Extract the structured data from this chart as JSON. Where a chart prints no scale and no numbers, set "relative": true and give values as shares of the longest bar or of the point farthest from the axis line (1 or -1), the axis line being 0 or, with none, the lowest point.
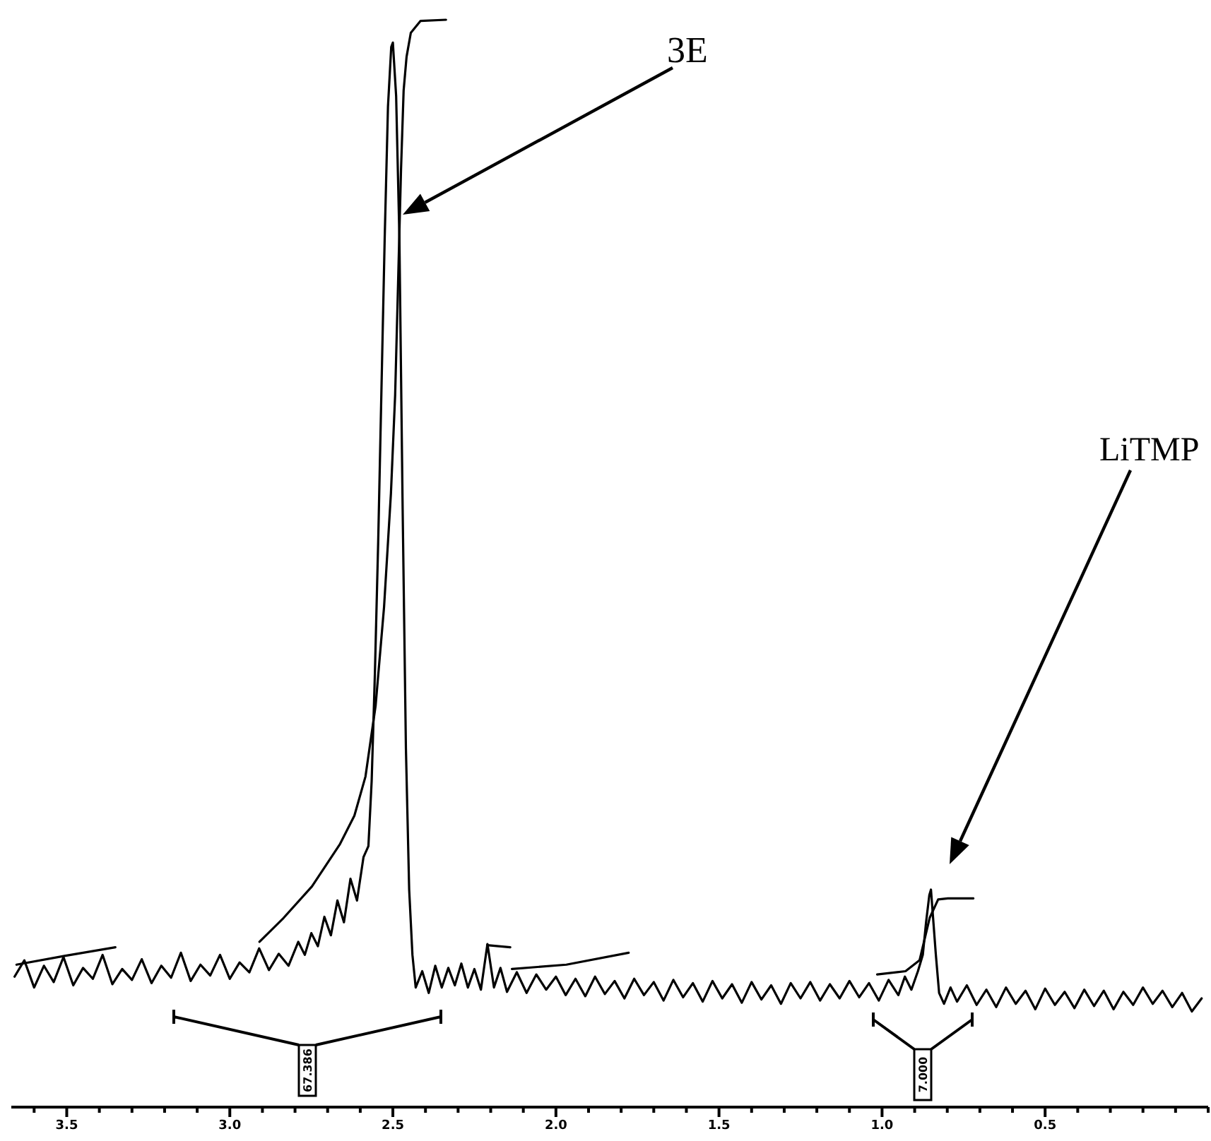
{
  "chart_data": {
    "type": "line",
    "relative": true,
    "xlim": [
      3.67,
      0.0
    ],
    "xticks": [
      {
        "value": 3.6,
        "label": null
      },
      3.5,
      {
        "value": 3.4,
        "label": null
      },
      {
        "value": 3.3,
        "label": null
      },
      {
        "value": 3.2,
        "label": null
      },
      {
        "value": 3.1,
        "label": null
      },
      {
        "value": 3.0,
        "label": "3.0"
      },
      {
        "value": 2.9,
        "label": null
      },
      {
        "value": 2.8,
        "label": null
      },
      {
        "value": 2.7,
        "label": null
      },
      {
        "value": 2.6,
        "label": null
      },
      2.5,
      {
        "value": 2.4,
        "label": null
      },
      {
        "value": 2.3,
        "label": null
      },
      {
        "value": 2.2,
        "label": null
      },
      {
        "value": 2.1,
        "label": null
      },
      {
        "value": 2.0,
        "label": "2.0"
      },
      {
        "value": 1.9,
        "label": null
      },
      {
        "value": 1.8,
        "label": null
      },
      {
        "value": 1.7,
        "label": null
      },
      {
        "value": 1.6,
        "label": null
      },
      1.5,
      {
        "value": 1.4,
        "label": null
      },
      {
        "value": 1.3,
        "label": null
      },
      {
        "value": 1.2,
        "label": null
      },
      {
        "value": 1.1,
        "label": null
      },
      {
        "value": 1.0,
        "label": "1.0"
      },
      {
        "value": 0.9,
        "label": null
      },
      {
        "value": 0.8,
        "label": null
      },
      {
        "value": 0.7,
        "label": null
      },
      {
        "value": 0.6,
        "label": null
      },
      0.5,
      {
        "value": 0.4,
        "label": null
      },
      {
        "value": 0.3,
        "label": null
      },
      {
        "value": 0.2,
        "label": null
      },
      {
        "value": 0.1,
        "label": null
      },
      {
        "value": 0.0,
        "label": null
      }
    ],
    "series": [
      {
        "color": "#000000",
        "x": [
          3.66,
          3.63,
          3.6,
          3.57,
          3.54,
          3.51,
          3.48,
          3.45,
          3.42,
          3.39,
          3.36,
          3.33,
          3.3,
          3.27,
          3.24,
          3.21,
          3.18,
          3.15,
          3.12,
          3.09,
          3.06,
          3.03,
          3.0,
          2.97,
          2.94,
          2.91,
          2.88,
          2.85,
          2.82,
          2.79,
          2.77,
          2.75,
          2.73,
          2.71,
          2.69,
          2.67,
          2.65,
          2.63,
          2.61,
          2.59,
          2.575,
          2.565,
          2.555,
          2.545,
          2.535,
          2.525,
          2.515,
          2.505,
          2.5,
          2.49,
          2.48,
          2.47,
          2.46,
          2.45,
          2.44,
          2.43,
          2.41,
          2.39,
          2.37,
          2.35,
          2.33,
          2.31,
          2.29,
          2.27,
          2.25,
          2.23,
          2.21,
          2.19,
          2.17,
          2.15,
          2.12,
          2.09,
          2.06,
          2.03,
          2.0,
          1.97,
          1.94,
          1.91,
          1.88,
          1.85,
          1.82,
          1.79,
          1.76,
          1.73,
          1.7,
          1.67,
          1.64,
          1.61,
          1.58,
          1.55,
          1.52,
          1.49,
          1.46,
          1.43,
          1.4,
          1.37,
          1.34,
          1.31,
          1.28,
          1.25,
          1.22,
          1.19,
          1.16,
          1.13,
          1.1,
          1.07,
          1.04,
          1.01,
          0.98,
          0.95,
          0.93,
          0.91,
          0.89,
          0.875,
          0.865,
          0.855,
          0.85,
          0.845,
          0.835,
          0.825,
          0.81,
          0.79,
          0.77,
          0.74,
          0.71,
          0.68,
          0.65,
          0.62,
          0.59,
          0.56,
          0.53,
          0.5,
          0.47,
          0.44,
          0.41,
          0.38,
          0.35,
          0.32,
          0.29,
          0.26,
          0.23,
          0.2,
          0.17,
          0.14,
          0.11,
          0.08,
          0.05,
          0.02
        ],
        "values": [
          0.12,
          0.135,
          0.11,
          0.13,
          0.115,
          0.138,
          0.112,
          0.128,
          0.118,
          0.14,
          0.113,
          0.127,
          0.117,
          0.136,
          0.114,
          0.13,
          0.119,
          0.142,
          0.116,
          0.131,
          0.121,
          0.14,
          0.118,
          0.133,
          0.124,
          0.146,
          0.126,
          0.141,
          0.13,
          0.152,
          0.14,
          0.16,
          0.148,
          0.175,
          0.158,
          0.19,
          0.17,
          0.21,
          0.19,
          0.23,
          0.24,
          0.3,
          0.4,
          0.52,
          0.66,
          0.8,
          0.92,
          0.975,
          0.979,
          0.93,
          0.8,
          0.55,
          0.33,
          0.2,
          0.14,
          0.11,
          0.125,
          0.105,
          0.13,
          0.11,
          0.128,
          0.112,
          0.132,
          0.11,
          0.127,
          0.108,
          0.15,
          0.11,
          0.128,
          0.106,
          0.124,
          0.105,
          0.122,
          0.108,
          0.12,
          0.103,
          0.118,
          0.102,
          0.12,
          0.104,
          0.116,
          0.1,
          0.118,
          0.103,
          0.115,
          0.098,
          0.117,
          0.101,
          0.114,
          0.097,
          0.116,
          0.1,
          0.113,
          0.096,
          0.115,
          0.099,
          0.112,
          0.095,
          0.114,
          0.1,
          0.115,
          0.098,
          0.113,
          0.1,
          0.116,
          0.101,
          0.114,
          0.098,
          0.117,
          0.103,
          0.12,
          0.108,
          0.125,
          0.14,
          0.17,
          0.195,
          0.2,
          0.18,
          0.14,
          0.105,
          0.095,
          0.11,
          0.097,
          0.112,
          0.094,
          0.108,
          0.092,
          0.11,
          0.095,
          0.107,
          0.09,
          0.109,
          0.094,
          0.106,
          0.091,
          0.108,
          0.093,
          0.107,
          0.09,
          0.106,
          0.094,
          0.11,
          0.095,
          0.107,
          0.092,
          0.105,
          0.088,
          0.1
        ]
      },
      {
        "color": "#000000",
        "x": [
          3.654,
          3.507,
          3.351,
          3.2,
          2.909,
          2.835,
          2.748,
          2.662,
          2.618,
          2.584,
          2.553,
          2.527,
          2.506,
          2.493,
          2.484,
          2.475,
          2.467,
          2.458,
          2.445,
          2.415,
          2.337,
          2.27,
          2.211,
          2.14,
          2.138,
          2.135,
          1.968,
          1.777,
          1.3,
          1.015,
          0.928,
          0.885,
          0.854,
          0.828,
          0.798,
          0.72
        ],
        "values": [
          0.131,
          0.139,
          0.147,
          null,
          0.152,
          0.174,
          0.203,
          0.242,
          0.268,
          0.304,
          0.369,
          0.46,
          0.564,
          0.655,
          0.758,
          0.862,
          0.935,
          0.966,
          0.988,
          0.999,
          1.0,
          null,
          0.149,
          0.147,
          null,
          0.127,
          0.131,
          0.142,
          null,
          0.122,
          0.125,
          0.135,
          0.174,
          0.191,
          0.192,
          0.192
        ]
      }
    ],
    "annotations": [
      "3E",
      "LiTMP",
      "67.386",
      "7.000"
    ]
  }
}
